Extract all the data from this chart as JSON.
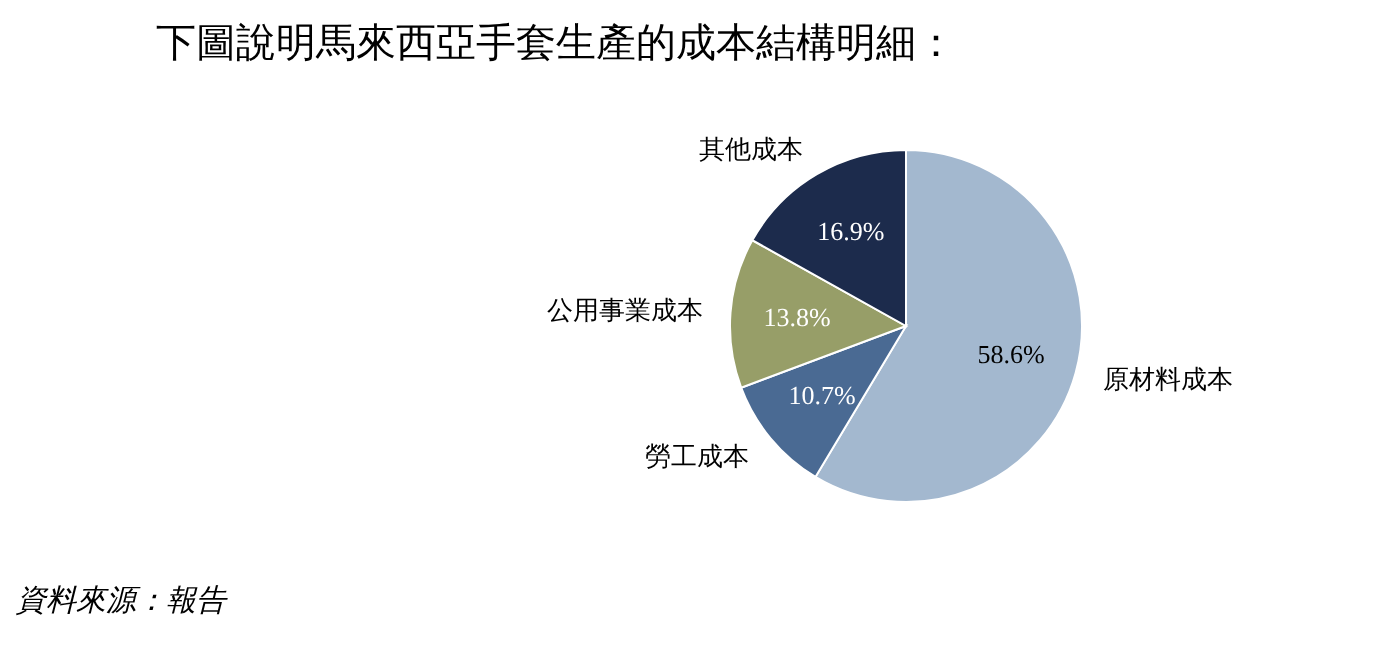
{
  "chart_data": {
    "type": "pie",
    "title": "下圖說明馬來西亞手套生產的成本結構明細：",
    "categories": [
      "原材料成本",
      "勞工成本",
      "公用事業成本",
      "其他成本"
    ],
    "values": [
      58.6,
      10.7,
      13.8,
      16.9
    ],
    "colors": [
      "#a3b8cf",
      "#4a6a93",
      "#979e68",
      "#1c2b4c"
    ],
    "value_labels": [
      "58.6%",
      "10.7%",
      "13.8%",
      "16.9%"
    ],
    "annotations": [
      "資料來源：報告"
    ]
  }
}
